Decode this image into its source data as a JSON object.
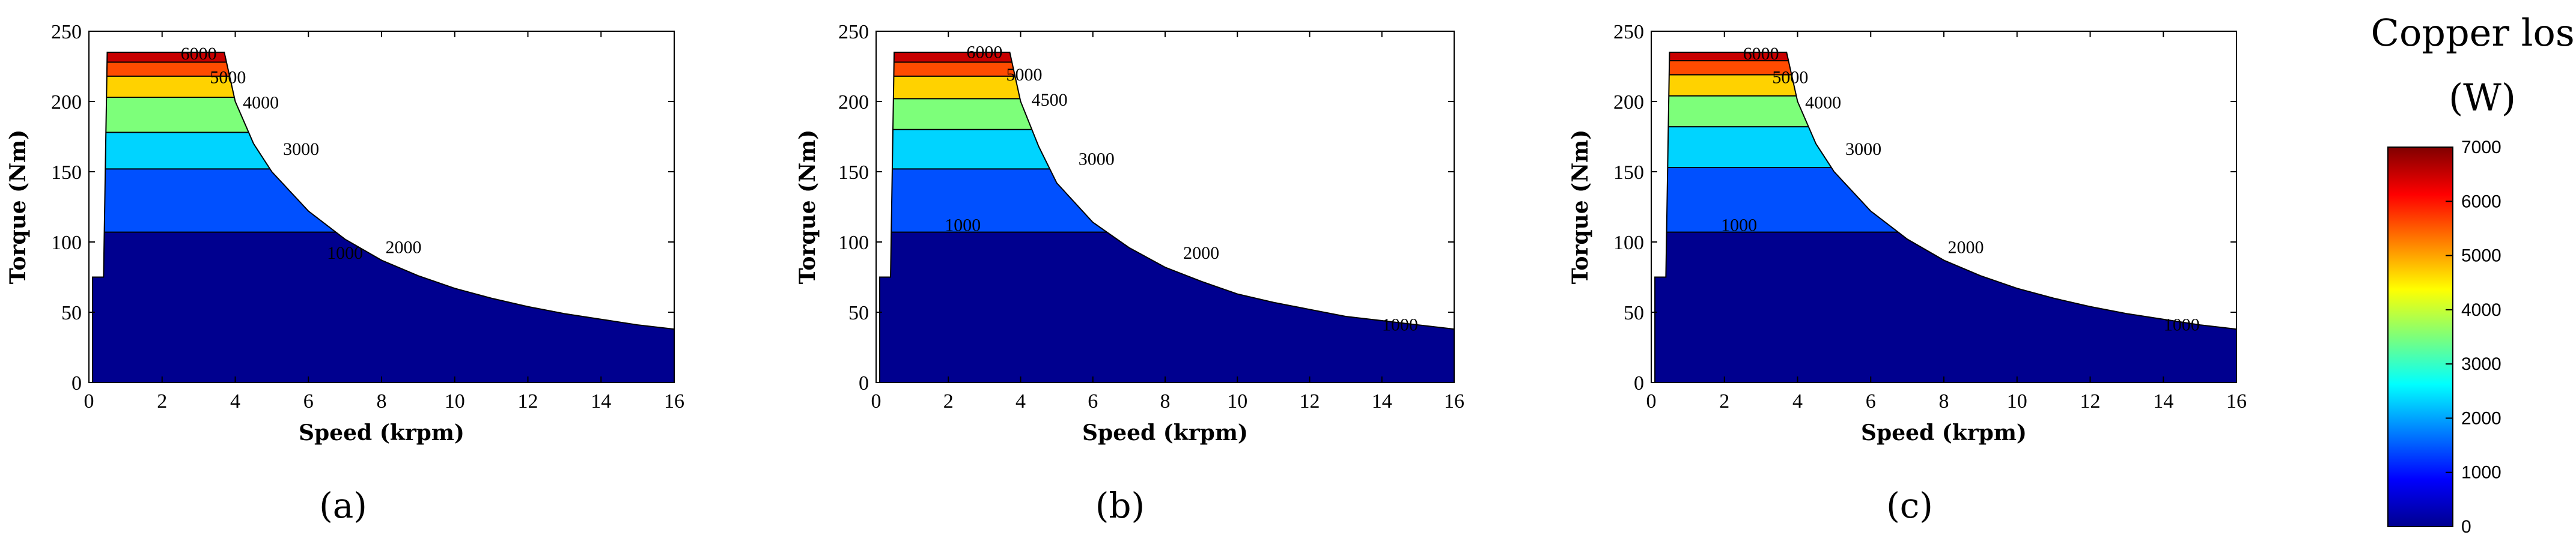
{
  "figure": {
    "colorbar": {
      "title_line1": "Copper loss",
      "title_line2": "(W)",
      "range": [
        0,
        7000
      ],
      "ticks": [
        "0",
        "1000",
        "2000",
        "3000",
        "4000",
        "5000",
        "6000",
        "7000"
      ],
      "colormap": "jet"
    }
  },
  "chart_data": [
    {
      "type": "heatmap",
      "panel_label": "(a)",
      "xlabel": "Speed (krpm)",
      "ylabel": "Torque (Nm)",
      "xlim": [
        0,
        16
      ],
      "ylim": [
        0,
        250
      ],
      "xticks": [
        "0",
        "2",
        "4",
        "6",
        "8",
        "10",
        "12",
        "14",
        "16"
      ],
      "yticks": [
        "0",
        "50",
        "100",
        "150",
        "200",
        "250"
      ],
      "envelope_speed_krpm": [
        0.1,
        0.4,
        0.5,
        3.7,
        4.0,
        4.5,
        5,
        6,
        7,
        8,
        9,
        10,
        11,
        12,
        13,
        14,
        15,
        16
      ],
      "envelope_torque_nm": [
        75,
        75,
        235,
        235,
        200,
        170,
        150,
        122,
        102,
        87,
        76,
        67,
        60,
        54,
        49,
        45,
        41,
        38
      ],
      "level_torque_nm": [
        0,
        107,
        152,
        178,
        203,
        218,
        228,
        235
      ],
      "level_colors": [
        "#00008f",
        "#0050ff",
        "#00d4ff",
        "#7dff7a",
        "#ffd200",
        "#ff4b00",
        "#c80000"
      ],
      "contour_labels": [
        {
          "text": "6000",
          "x": 3.0,
          "y": 230
        },
        {
          "text": "5000",
          "x": 3.8,
          "y": 213
        },
        {
          "text": "4000",
          "x": 4.7,
          "y": 195
        },
        {
          "text": "3000",
          "x": 5.8,
          "y": 162
        },
        {
          "text": "2000",
          "x": 8.6,
          "y": 92
        },
        {
          "text": "1000",
          "x": 7.0,
          "y": 88
        }
      ]
    },
    {
      "type": "heatmap",
      "panel_label": "(b)",
      "xlabel": "Speed (krpm)",
      "ylabel": "Torque (Nm)",
      "xlim": [
        0,
        16
      ],
      "ylim": [
        0,
        250
      ],
      "xticks": [
        "0",
        "2",
        "4",
        "6",
        "8",
        "10",
        "12",
        "14",
        "16"
      ],
      "yticks": [
        "0",
        "50",
        "100",
        "150",
        "200",
        "250"
      ],
      "envelope_speed_krpm": [
        0.1,
        0.4,
        0.5,
        3.7,
        4.0,
        4.5,
        5,
        6,
        7,
        8,
        9,
        10,
        11,
        12,
        13,
        14,
        15,
        16
      ],
      "envelope_torque_nm": [
        75,
        75,
        235,
        235,
        200,
        168,
        142,
        114,
        96,
        82,
        72,
        63,
        57,
        52,
        47,
        44,
        41,
        38
      ],
      "level_torque_nm": [
        0,
        107,
        152,
        180,
        202,
        218,
        228,
        235
      ],
      "level_colors": [
        "#00008f",
        "#0050ff",
        "#00d4ff",
        "#7dff7a",
        "#ffd200",
        "#ff4b00",
        "#c80000"
      ],
      "contour_labels": [
        {
          "text": "6000",
          "x": 3.0,
          "y": 231
        },
        {
          "text": "5000",
          "x": 4.1,
          "y": 215
        },
        {
          "text": "4500",
          "x": 4.8,
          "y": 197
        },
        {
          "text": "3000",
          "x": 6.1,
          "y": 155
        },
        {
          "text": "2000",
          "x": 9.0,
          "y": 88
        },
        {
          "text": "1000",
          "x": 2.4,
          "y": 108
        },
        {
          "text": "1000",
          "x": 14.5,
          "y": 37
        }
      ]
    },
    {
      "type": "heatmap",
      "panel_label": "(c)",
      "xlabel": "Speed (krpm)",
      "ylabel": "Torque (Nm)",
      "xlim": [
        0,
        16
      ],
      "ylim": [
        0,
        250
      ],
      "xticks": [
        "0",
        "2",
        "4",
        "6",
        "8",
        "10",
        "12",
        "14",
        "16"
      ],
      "yticks": [
        "0",
        "50",
        "100",
        "150",
        "200",
        "250"
      ],
      "envelope_speed_krpm": [
        0.1,
        0.4,
        0.5,
        3.7,
        4.0,
        4.5,
        5,
        6,
        7,
        8,
        9,
        10,
        11,
        12,
        13,
        14,
        15,
        16
      ],
      "envelope_torque_nm": [
        75,
        75,
        235,
        235,
        200,
        170,
        150,
        122,
        102,
        87,
        76,
        67,
        60,
        54,
        49,
        45,
        41,
        38
      ],
      "level_torque_nm": [
        0,
        107,
        153,
        182,
        204,
        219,
        229,
        235
      ],
      "level_colors": [
        "#00008f",
        "#0050ff",
        "#00d4ff",
        "#7dff7a",
        "#ffd200",
        "#ff4b00",
        "#c80000"
      ],
      "contour_labels": [
        {
          "text": "6000",
          "x": 3.0,
          "y": 230
        },
        {
          "text": "5000",
          "x": 3.8,
          "y": 213
        },
        {
          "text": "4000",
          "x": 4.7,
          "y": 195
        },
        {
          "text": "3000",
          "x": 5.8,
          "y": 162
        },
        {
          "text": "2000",
          "x": 8.6,
          "y": 92
        },
        {
          "text": "1000",
          "x": 2.4,
          "y": 108
        },
        {
          "text": "1000",
          "x": 14.5,
          "y": 37
        }
      ]
    }
  ]
}
